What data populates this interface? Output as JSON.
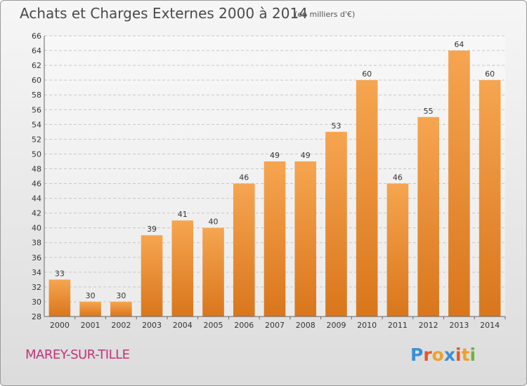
{
  "title": "Achats et Charges Externes 2000 à 2014",
  "unit_note": "(en milliers d'€)",
  "town": "MAREY-SUR-TILLE",
  "brand": {
    "letters": [
      "P",
      "r",
      "o",
      "x",
      "i",
      "t",
      "i"
    ],
    "colors": [
      "#3a8fd6",
      "#e4562a",
      "#f0a02c",
      "#3a8fd6",
      "#e4562a",
      "#f0a02c",
      "#6cb33f"
    ]
  },
  "colors": {
    "bar_top": "#f6a550",
    "bar_bottom": "#d9761c",
    "grid": "#c8c8c8",
    "axis_text": "#333333"
  },
  "chart_data": {
    "type": "bar",
    "title": "Achats et Charges Externes 2000 à 2014",
    "categories": [
      "2000",
      "2001",
      "2002",
      "2003",
      "2004",
      "2005",
      "2006",
      "2007",
      "2008",
      "2009",
      "2010",
      "2011",
      "2012",
      "2013",
      "2014"
    ],
    "values": [
      33,
      30,
      30,
      39,
      41,
      40,
      46,
      49,
      49,
      53,
      60,
      46,
      55,
      64,
      60
    ],
    "ylim": [
      28,
      66
    ],
    "yticks": [
      28,
      30,
      32,
      34,
      36,
      38,
      40,
      42,
      44,
      46,
      48,
      50,
      52,
      54,
      56,
      58,
      60,
      62,
      64,
      66
    ],
    "xlabel": "",
    "ylabel": "",
    "grid": true
  }
}
